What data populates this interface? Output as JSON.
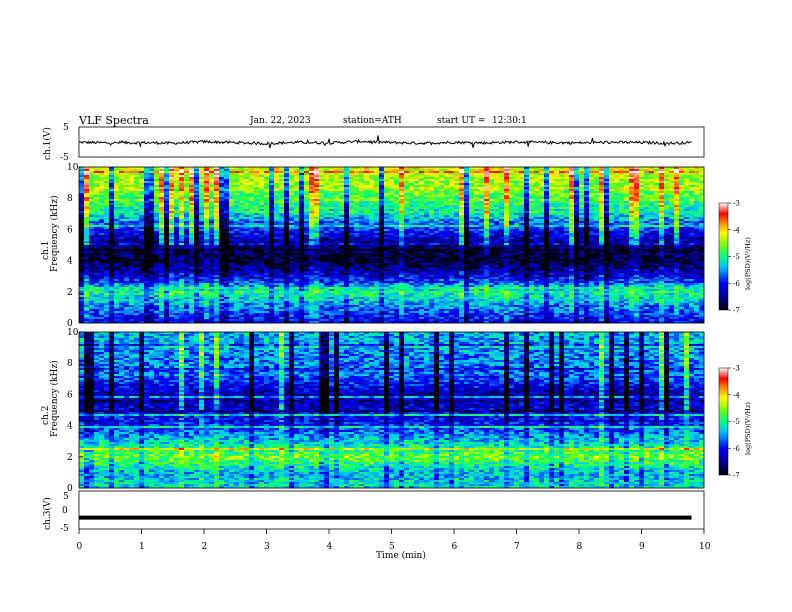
{
  "header": {
    "title": "VLF Spectra",
    "date": "Jan. 22, 2023",
    "station": "station=ATH",
    "start_label": "start UT =",
    "start_time": "12:30:1"
  },
  "chart_data": [
    {
      "type": "line",
      "panel": "ch1-waveform",
      "ylabel": "ch.1(V)",
      "ylim": [
        -5,
        5
      ],
      "yticks": [
        "5",
        "-5"
      ],
      "xlim": [
        0,
        10
      ],
      "x": [
        0,
        0.5,
        1,
        1.5,
        2,
        2.5,
        3,
        3.5,
        4,
        4.5,
        5,
        5.5,
        6,
        6.5,
        7,
        7.5,
        8,
        8.5,
        9,
        9.5,
        9.8
      ],
      "y": [
        -0.1,
        -0.3,
        -0.2,
        -0.4,
        0.1,
        -0.2,
        -0.5,
        -0.1,
        -0.3,
        0.2,
        -0.2,
        -0.4,
        -0.1,
        -0.3,
        0.0,
        -0.2,
        -0.3,
        -0.1,
        -0.2,
        -0.4,
        -0.2
      ]
    },
    {
      "type": "heatmap",
      "panel": "ch1-spectrogram",
      "ylabel_top": "ch.1",
      "ylabel": "Frequency (kHz)",
      "ylim": [
        0,
        10
      ],
      "yticks": [
        "0",
        "2",
        "4",
        "6",
        "8",
        "10"
      ],
      "xlim": [
        0,
        10
      ],
      "colorbar": {
        "label": "log(PSD)(V²/Hz)",
        "range": [
          -7,
          -3
        ],
        "ticks": [
          "-3",
          "-4",
          "-5",
          "-6",
          "-7"
        ]
      },
      "band_kHz": [
        0,
        1,
        2,
        3,
        4,
        5,
        6,
        7,
        8,
        9,
        10
      ],
      "log_psd": [
        -6.2,
        -5.6,
        -5.0,
        -6.2,
        -6.9,
        -6.6,
        -5.9,
        -5.2,
        -4.8,
        -4.5,
        -4.2
      ]
    },
    {
      "type": "heatmap",
      "panel": "ch2-spectrogram",
      "ylabel_top": "ch.2",
      "ylabel": "Frequency (kHz)",
      "ylim": [
        0,
        10
      ],
      "yticks": [
        "0",
        "2",
        "4",
        "6",
        "8",
        "10"
      ],
      "xlim": [
        0,
        10
      ],
      "colorbar": {
        "label": "log(PSD)(V²/Hz)",
        "range": [
          -7,
          -3
        ],
        "ticks": [
          "-3",
          "-4",
          "-5",
          "-6",
          "-7"
        ]
      },
      "band_kHz": [
        0,
        1,
        2,
        3,
        4,
        5,
        6,
        7,
        8,
        9,
        10
      ],
      "log_psd": [
        -5.2,
        -5.4,
        -4.6,
        -5.3,
        -5.9,
        -6.2,
        -6.4,
        -5.8,
        -5.6,
        -5.5,
        -5.4
      ]
    },
    {
      "type": "line",
      "panel": "ch3-waveform",
      "ylabel": "ch.3(V)",
      "ylim": [
        -5,
        5
      ],
      "yticks": [
        "5",
        "0",
        "-5"
      ],
      "xlim": [
        0,
        10
      ],
      "x": [
        0,
        9.8
      ],
      "y": [
        -2,
        -2
      ]
    }
  ],
  "xaxis": {
    "label": "Time (min)",
    "ticks": [
      "0",
      "1",
      "2",
      "3",
      "4",
      "5",
      "6",
      "7",
      "8",
      "9",
      "10"
    ]
  },
  "colors": {
    "colormap": [
      "#000080",
      "#0000ff",
      "#00a0ff",
      "#00ffff",
      "#00ff80",
      "#80ff00",
      "#ffff00",
      "#ff8000",
      "#ff0000",
      "#ffffff"
    ]
  }
}
